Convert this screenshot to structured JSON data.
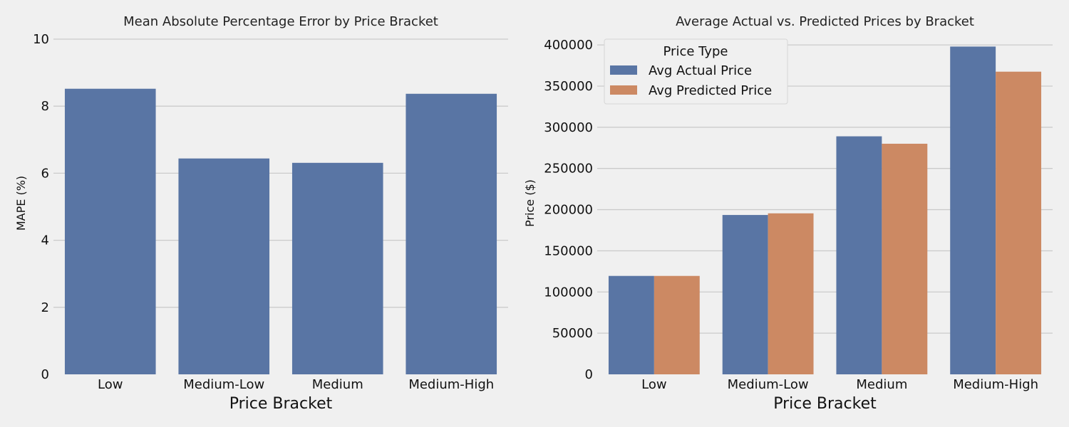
{
  "chart_data": [
    {
      "type": "bar",
      "title": "Mean Absolute Percentage Error by Price Bracket",
      "xlabel": "Price Bracket",
      "ylabel": "MAPE (%)",
      "categories": [
        "Low",
        "Medium-Low",
        "Medium",
        "Medium-High"
      ],
      "yticks": [
        0,
        2,
        4,
        6,
        8,
        10
      ],
      "ylim": [
        0,
        10
      ],
      "grid": "horizontal",
      "series": [
        {
          "values": [
            8.52,
            6.44,
            6.31,
            8.37
          ],
          "color": "#5975a4"
        }
      ]
    },
    {
      "type": "bar",
      "title": "Average Actual vs. Predicted Prices by Bracket",
      "xlabel": "Price Bracket",
      "ylabel": "Price ($)",
      "categories": [
        "Low",
        "Medium-Low",
        "Medium",
        "Medium-High"
      ],
      "yticks": [
        0,
        50000,
        100000,
        150000,
        200000,
        250000,
        300000,
        350000,
        400000
      ],
      "ylim": [
        0,
        407000
      ],
      "grid": "horizontal",
      "legend": {
        "title": "Price Type",
        "position": "top-left"
      },
      "series": [
        {
          "name": "Avg Actual Price",
          "values": [
            119500,
            193500,
            289000,
            398000
          ],
          "color": "#5975a4"
        },
        {
          "name": "Avg Predicted Price",
          "values": [
            119500,
            195500,
            280000,
            367500
          ],
          "color": "#cc8963"
        }
      ]
    }
  ]
}
